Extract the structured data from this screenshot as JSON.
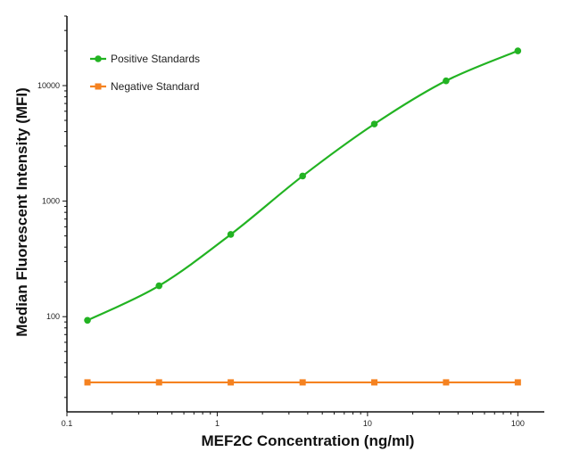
{
  "chart_data": {
    "type": "line",
    "xlabel": "MEF2C Concentration (ng/ml)",
    "ylabel": "Median  Fluorescent Intensity  (MFI)",
    "x_scale": "log",
    "y_scale": "log",
    "xlim": [
      0.1,
      150
    ],
    "ylim": [
      15,
      40000
    ],
    "x_ticks": [
      {
        "value": 0.1,
        "label": "0.1"
      },
      {
        "value": 1,
        "label": "1"
      },
      {
        "value": 10,
        "label": "10"
      },
      {
        "value": 100,
        "label": "100"
      }
    ],
    "y_ticks": [
      {
        "value": 100,
        "label": "100"
      },
      {
        "value": 1000,
        "label": "1000"
      },
      {
        "value": 10000,
        "label": "10000"
      }
    ],
    "grid": false,
    "legend_position": "top-left",
    "series": [
      {
        "name": "Positive Standards",
        "color": "#22b322",
        "marker": "circle",
        "points": [
          {
            "x": 0.137,
            "y": 93
          },
          {
            "x": 0.41,
            "y": 185
          },
          {
            "x": 1.23,
            "y": 515
          },
          {
            "x": 3.7,
            "y": 1650
          },
          {
            "x": 11.1,
            "y": 4650
          },
          {
            "x": 33.3,
            "y": 11000
          },
          {
            "x": 100,
            "y": 20000
          }
        ]
      },
      {
        "name": "Negative Standard",
        "color": "#f58220",
        "marker": "square",
        "points": [
          {
            "x": 0.137,
            "y": 27
          },
          {
            "x": 0.41,
            "y": 27
          },
          {
            "x": 1.23,
            "y": 27
          },
          {
            "x": 3.7,
            "y": 27
          },
          {
            "x": 11.1,
            "y": 27
          },
          {
            "x": 33.3,
            "y": 27
          },
          {
            "x": 100,
            "y": 27
          }
        ]
      }
    ]
  }
}
